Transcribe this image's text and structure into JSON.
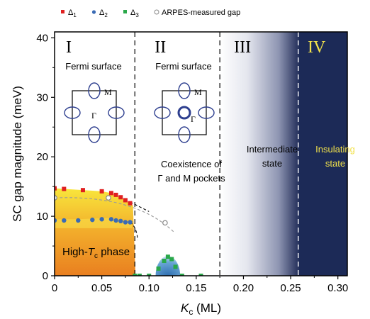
{
  "chart_data": {
    "type": "scatter",
    "xlabel_main": "K",
    "xlabel_sub": "c",
    "xlabel_unit": "(ML)",
    "ylabel": "SC gap magnitude (meV)",
    "xlim": [
      0,
      0.31
    ],
    "ylim": [
      0,
      41
    ],
    "x_ticks": [
      0,
      0.05,
      0.1,
      0.15,
      0.2,
      0.25,
      0.3
    ],
    "x_tick_labels": [
      "0",
      "0.05",
      "0.10",
      "0.15",
      "0.20",
      "0.25",
      "0.30"
    ],
    "y_ticks": [
      0,
      10,
      20,
      30,
      40
    ],
    "y_tick_labels": [
      "0",
      "10",
      "20",
      "30",
      "40"
    ],
    "legend": [
      {
        "symbol": "Δ",
        "sub": "1",
        "color": "#e02020",
        "marker": "square"
      },
      {
        "symbol": "Δ",
        "sub": "2",
        "color": "#3a6bb5",
        "marker": "circle"
      },
      {
        "symbol": "Δ",
        "sub": "3",
        "color": "#2aa84a",
        "marker": "square"
      },
      {
        "label": "ARPES-measured gap",
        "color": "#888888",
        "marker": "open-circle"
      }
    ],
    "series": [
      {
        "name": "Δ1",
        "color": "#e02020",
        "marker": "square",
        "x": [
          0,
          0.01,
          0.03,
          0.05,
          0.06,
          0.065,
          0.07,
          0.075,
          0.08
        ],
        "y": [
          14.7,
          14.6,
          14.4,
          14.2,
          13.9,
          13.6,
          13.2,
          12.7,
          12.2
        ]
      },
      {
        "name": "Δ2",
        "color": "#3a6bb5",
        "marker": "circle",
        "x": [
          0,
          0.01,
          0.025,
          0.04,
          0.05,
          0.06,
          0.065,
          0.07,
          0.075,
          0.08
        ],
        "y": [
          9.3,
          9.3,
          9.3,
          9.4,
          9.5,
          9.5,
          9.3,
          9.2,
          9.0,
          9.0
        ]
      },
      {
        "name": "Δ3",
        "color": "#2aa84a",
        "marker": "square",
        "x": [
          0.085,
          0.09,
          0.1,
          0.11,
          0.116,
          0.12,
          0.124,
          0.128,
          0.135,
          0.155
        ],
        "y": [
          0,
          0,
          0,
          1.2,
          2.5,
          3.2,
          2.8,
          1.5,
          0,
          0
        ]
      },
      {
        "name": "ARPES-measured gap",
        "color": "#888888",
        "marker": "open-circle",
        "x": [
          0,
          0.057,
          0.117
        ],
        "y": [
          13.1,
          13.1,
          8.9
        ]
      }
    ],
    "regions": [
      {
        "label": "I",
        "x_start": 0,
        "x_end": 0.085
      },
      {
        "label": "II",
        "x_start": 0.085,
        "x_end": 0.175
      },
      {
        "label": "III",
        "x_start": 0.175,
        "x_end": 0.258
      },
      {
        "label": "IV",
        "x_start": 0.258,
        "x_end": 0.31
      }
    ],
    "annotations": {
      "fermi_surface": "Fermi surface",
      "M": "M",
      "Gamma": "Γ",
      "coexistence_line1": "Coexistence of",
      "coexistence_line2": "Γ and M pockets",
      "intermediate_line1": "Intermediate",
      "intermediate_line2": "state",
      "insulating_line1": "Insulating",
      "insulating_line2": "state",
      "high_tc_pre": "High-",
      "high_tc_T": "T",
      "high_tc_sub": "c",
      "high_tc_post": " phase"
    },
    "colors": {
      "phase_orange": "#ec8a22",
      "phase_yellow": "#f7e23a",
      "dome_blue": "#3d7fbf",
      "insulating_navy": "#1c2a57",
      "insulating_text": "#f2e24b",
      "pocket_blue": "#2e3f8f"
    }
  }
}
